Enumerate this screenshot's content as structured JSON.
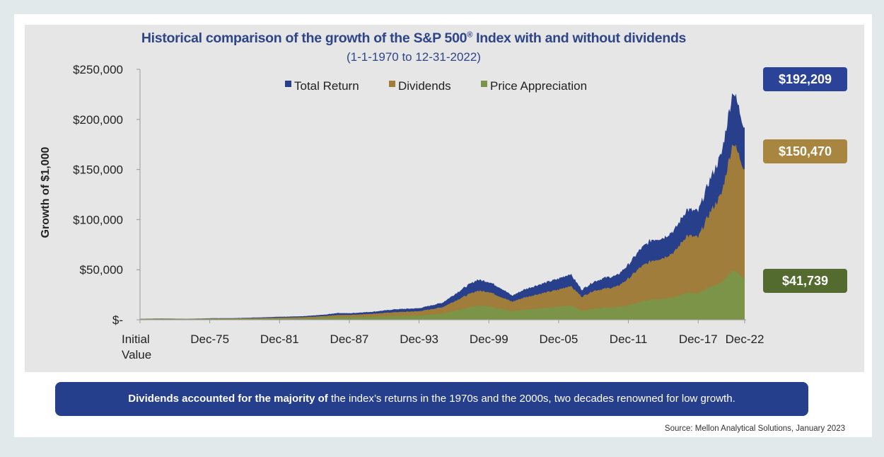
{
  "title": "Historical comparison of the growth of the S&P 500",
  "title_mark": "®",
  "title_suffix": " Index with and without dividends",
  "subtitle": "(1-1-1970 to 12-31-2022)",
  "banner": {
    "bold": "Dividends accounted for the majority of",
    "rest": " the index’s returns in the 1970s and the 2000s, two decades renowned for low growth."
  },
  "source": "Source: Mellon Analytical Solutions, January 2023",
  "badges": [
    {
      "label": "$192,209",
      "color": "#2a4399"
    },
    {
      "label": "$150,470",
      "color": "#a8863f"
    },
    {
      "label": "$41,739",
      "color": "#536b2f"
    }
  ],
  "colors": {
    "total": "#283f8c",
    "dividends": "#a07d3a",
    "price": "#7c9447",
    "axis": "#9a9a9a",
    "text": "#222222"
  },
  "chart_data": {
    "type": "area",
    "title": "Historical comparison of the growth of the S&P 500® Index with and without dividends",
    "subtitle": "(1-1-1970 to 12-31-2022)",
    "xlabel": "",
    "ylabel": "Growth of $1,000",
    "ylim": [
      0,
      250000
    ],
    "yticks": [
      0,
      50000,
      100000,
      150000,
      200000,
      250000
    ],
    "ytick_labels": [
      "$-",
      "$50,000",
      "$100,000",
      "$150,000",
      "$200,000",
      "$250,000"
    ],
    "xlim": [
      1970,
      2022
    ],
    "xticks": [
      1970,
      1976,
      1982,
      1988,
      1994,
      2000,
      2006,
      2012,
      2018,
      2022
    ],
    "xtick_labels": [
      "Initial Value",
      "Dec-75",
      "Dec-81",
      "Dec-87",
      "Dec-93",
      "Dec-99",
      "Dec-05",
      "Dec-11",
      "Dec-17",
      "Dec-22"
    ],
    "legend": [
      "Total Return",
      "Dividends",
      "Price Appreciation"
    ],
    "legend_position": "top-center",
    "grid": false,
    "x": [
      1970,
      1972,
      1974,
      1976,
      1978,
      1980,
      1982,
      1984,
      1986,
      1987,
      1988,
      1990,
      1992,
      1994,
      1996,
      1998,
      1999,
      2000,
      2001,
      2002,
      2003,
      2004,
      2006,
      2007,
      2008,
      2009,
      2010,
      2011,
      2012,
      2013,
      2014,
      2015,
      2016,
      2017,
      2018,
      2019,
      2020,
      2021,
      2022
    ],
    "series": [
      {
        "name": "Total Return",
        "values": [
          1000,
          1300,
          900,
          1500,
          1600,
          2300,
          3000,
          3500,
          5200,
          6800,
          6500,
          8000,
          10500,
          11500,
          17000,
          33000,
          40000,
          38000,
          32000,
          24000,
          30000,
          34000,
          41000,
          46000,
          30000,
          38000,
          42000,
          44000,
          55000,
          70000,
          80000,
          82000,
          90000,
          110000,
          108000,
          140000,
          165000,
          230000,
          192209
        ]
      },
      {
        "name": "Dividends",
        "values": [
          1000,
          1150,
          800,
          1250,
          1300,
          1700,
          2100,
          2500,
          3800,
          4800,
          4800,
          6000,
          7600,
          8500,
          12500,
          24000,
          29000,
          28000,
          23000,
          18000,
          22000,
          25000,
          30000,
          34000,
          23000,
          29000,
          31000,
          33000,
          41000,
          52000,
          59000,
          62000,
          68000,
          84000,
          82000,
          107000,
          125000,
          178000,
          150470
        ]
      },
      {
        "name": "Price Appreciation",
        "values": [
          1000,
          1050,
          700,
          1000,
          950,
          1150,
          1300,
          1400,
          2000,
          2600,
          2600,
          3000,
          3800,
          4200,
          6000,
          11500,
          14000,
          13500,
          11000,
          8500,
          10000,
          11000,
          13000,
          14500,
          9000,
          11000,
          12000,
          12500,
          14500,
          17500,
          20500,
          21000,
          22500,
          27000,
          26000,
          33000,
          37000,
          50000,
          41739
        ]
      }
    ]
  }
}
